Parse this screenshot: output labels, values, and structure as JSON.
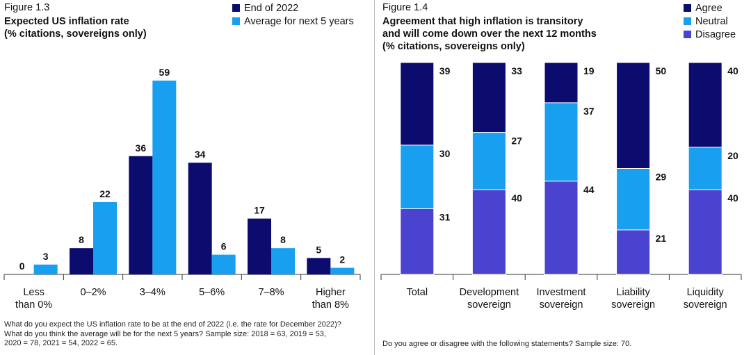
{
  "chart_data": [
    {
      "type": "bar",
      "figure_label": "Figure 1.3",
      "title": [
        "Expected US inflation rate",
        "(% citations, sovereigns only)"
      ],
      "categories": [
        [
          "Less",
          "than 0%"
        ],
        [
          "0–2%"
        ],
        [
          "3–4%"
        ],
        [
          "5–6%"
        ],
        [
          "7–8%"
        ],
        [
          "Higher",
          "than 8%"
        ]
      ],
      "series": [
        {
          "name": "End of 2022",
          "color": "#0c0c6e",
          "values": [
            0,
            8,
            36,
            34,
            17,
            5
          ]
        },
        {
          "name": "Average for next 5 years",
          "color": "#189ff0",
          "values": [
            3,
            22,
            59,
            6,
            8,
            2
          ]
        }
      ],
      "ylim": [
        0,
        59
      ],
      "legend": "top-right",
      "note": [
        "What do you expect the US inflation rate to be at the end of 2022 (i.e. the rate for December 2022)?",
        "What do you think the average will be for the next 5 years? Sample size: 2018 = 63, 2019 = 53,",
        "2020 = 78, 2021 = 54, 2022 = 65."
      ]
    },
    {
      "type": "bar",
      "stacked": true,
      "figure_label": "Figure 1.4",
      "title": [
        "Agreement that high inflation is transitory",
        "and will come down over the next 12 months",
        "(% citations, sovereigns only)"
      ],
      "categories": [
        [
          "Total"
        ],
        [
          "Development",
          "sovereign"
        ],
        [
          "Investment",
          "sovereign"
        ],
        [
          "Liability",
          "sovereign"
        ],
        [
          "Liquidity",
          "sovereign"
        ]
      ],
      "series": [
        {
          "name": "Agree",
          "color": "#0c0c6e",
          "values": [
            39,
            33,
            19,
            50,
            40
          ]
        },
        {
          "name": "Neutral",
          "color": "#189ff0",
          "values": [
            30,
            27,
            37,
            29,
            20
          ]
        },
        {
          "name": "Disagree",
          "color": "#4a43cf",
          "values": [
            31,
            40,
            44,
            21,
            40
          ]
        }
      ],
      "legend": "top-right",
      "note": [
        "Do you agree or disagree with the following statements? Sample size: 70."
      ]
    }
  ]
}
